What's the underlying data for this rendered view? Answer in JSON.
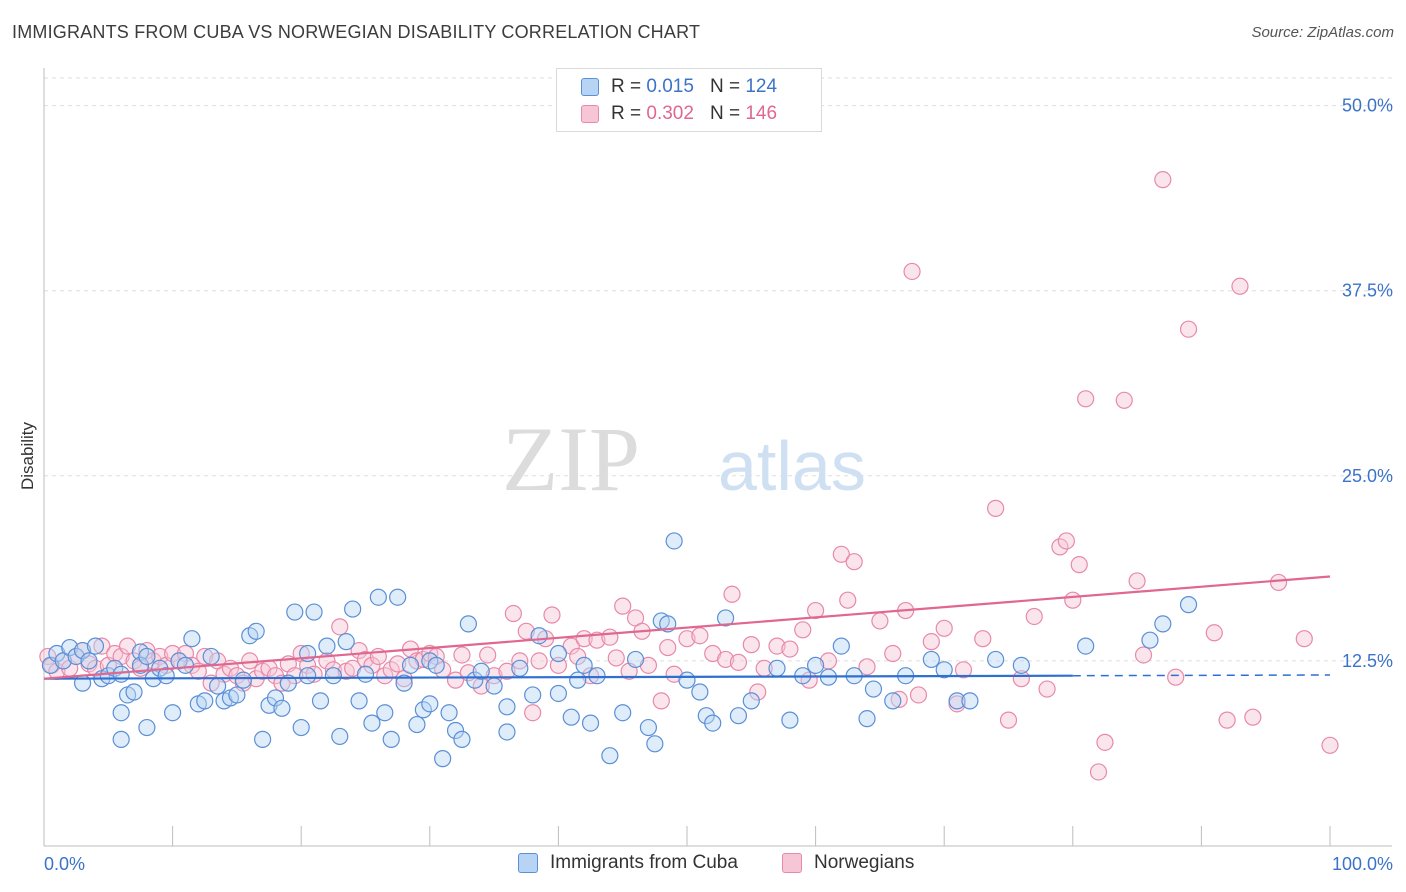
{
  "title": "IMMIGRANTS FROM CUBA VS NORWEGIAN DISABILITY CORRELATION CHART",
  "source": "Source: ZipAtlas.com",
  "watermark": {
    "zip": "ZIP",
    "atlas": "atlas"
  },
  "legend": {
    "r_label": "R =",
    "n_label": "N =",
    "blue": {
      "r": "0.015",
      "n": "124"
    },
    "pink": {
      "r": "0.302",
      "n": "146"
    }
  },
  "colors": {
    "blue_fill": "#b8d4f5",
    "blue_stroke": "#5b8fd6",
    "blue_line": "#2e6fd0",
    "pink_fill": "#f7c6d6",
    "pink_stroke": "#e889a8",
    "pink_line": "#e0678f",
    "tick_label": "#3b73c9"
  },
  "chart_data": {
    "type": "scatter",
    "title": "IMMIGRANTS FROM CUBA VS NORWEGIAN DISABILITY CORRELATION CHART",
    "xlabel": "",
    "ylabel": "Disability",
    "xlim": [
      0,
      100
    ],
    "ylim": [
      0,
      52
    ],
    "x_tick_labels": [
      "0.0%",
      "100.0%"
    ],
    "y_ticks": [
      12.5,
      25.0,
      37.5,
      50.0
    ],
    "y_tick_labels": [
      "12.5%",
      "25.0%",
      "37.5%",
      "50.0%"
    ],
    "grid": "horizontal dashed",
    "legend_position": "top-center and bottom",
    "series": [
      {
        "name": "Immigrants from Cuba",
        "r": 0.015,
        "n": 124,
        "trend": {
          "x0": 0,
          "y0": 11.3,
          "x1": 80,
          "y1": 11.5,
          "dashed_to": 100
        },
        "points": [
          [
            0.5,
            12.2
          ],
          [
            1,
            13
          ],
          [
            1.5,
            12.5
          ],
          [
            2,
            13.4
          ],
          [
            2.5,
            12.8
          ],
          [
            3,
            13.2
          ],
          [
            3.5,
            12.5
          ],
          [
            4,
            13.5
          ],
          [
            4.5,
            11.3
          ],
          [
            5,
            11.5
          ],
          [
            5.5,
            12
          ],
          [
            6,
            11.6
          ],
          [
            6,
            9
          ],
          [
            6,
            7.2
          ],
          [
            6.5,
            10.2
          ],
          [
            7,
            10.4
          ],
          [
            7.5,
            13.1
          ],
          [
            7.5,
            12.2
          ],
          [
            8,
            8
          ],
          [
            8.5,
            11.3
          ],
          [
            9,
            12
          ],
          [
            9.5,
            11.5
          ],
          [
            10,
            9
          ],
          [
            10.5,
            12.5
          ],
          [
            11,
            12.2
          ],
          [
            11.5,
            14
          ],
          [
            12,
            9.6
          ],
          [
            12.5,
            9.8
          ],
          [
            13,
            12.8
          ],
          [
            13.5,
            10.8
          ],
          [
            14,
            9.8
          ],
          [
            14.5,
            10
          ],
          [
            15,
            10.2
          ],
          [
            15.5,
            11.2
          ],
          [
            16,
            14.2
          ],
          [
            16.5,
            14.5
          ],
          [
            17,
            7.2
          ],
          [
            17.5,
            9.5
          ],
          [
            18,
            10
          ],
          [
            18.5,
            9.3
          ],
          [
            19,
            11
          ],
          [
            19.5,
            15.8
          ],
          [
            20,
            8
          ],
          [
            20.5,
            11.5
          ],
          [
            21,
            15.8
          ],
          [
            21.5,
            9.8
          ],
          [
            22,
            13.5
          ],
          [
            22.5,
            11.5
          ],
          [
            23,
            7.4
          ],
          [
            23.5,
            13.8
          ],
          [
            24,
            16
          ],
          [
            24.5,
            9.8
          ],
          [
            25,
            11.6
          ],
          [
            25.5,
            8.3
          ],
          [
            26,
            16.8
          ],
          [
            26.5,
            9
          ],
          [
            27,
            7.2
          ],
          [
            27.5,
            16.8
          ],
          [
            28,
            11
          ],
          [
            28.5,
            12.2
          ],
          [
            29,
            8.2
          ],
          [
            29.5,
            9.2
          ],
          [
            30,
            12.5
          ],
          [
            30.5,
            12.2
          ],
          [
            31,
            5.9
          ],
          [
            31.5,
            9
          ],
          [
            32,
            7.8
          ],
          [
            32.5,
            7.2
          ],
          [
            33,
            15
          ],
          [
            33.5,
            11.2
          ],
          [
            34,
            11.8
          ],
          [
            35,
            10.8
          ],
          [
            36,
            7.7
          ],
          [
            37,
            12
          ],
          [
            38,
            10.2
          ],
          [
            38.5,
            14.2
          ],
          [
            40,
            10.3
          ],
          [
            41,
            8.7
          ],
          [
            41.5,
            11.2
          ],
          [
            42,
            12.2
          ],
          [
            42.5,
            8.3
          ],
          [
            43,
            11.5
          ],
          [
            44,
            6.1
          ],
          [
            45,
            9
          ],
          [
            46,
            12.6
          ],
          [
            47,
            8
          ],
          [
            47.5,
            6.9
          ],
          [
            48,
            15.2
          ],
          [
            48.5,
            15
          ],
          [
            50,
            11.2
          ],
          [
            51,
            10.4
          ],
          [
            51.5,
            8.8
          ],
          [
            52,
            8.3
          ],
          [
            53,
            15.4
          ],
          [
            54,
            8.8
          ],
          [
            55,
            9.8
          ],
          [
            57,
            12
          ],
          [
            58,
            8.5
          ],
          [
            59,
            11.5
          ],
          [
            60,
            12.2
          ],
          [
            61,
            11.4
          ],
          [
            62,
            13.5
          ],
          [
            63,
            11.5
          ],
          [
            64,
            8.6
          ],
          [
            64.5,
            10.6
          ],
          [
            66,
            9.8
          ],
          [
            67,
            11.5
          ],
          [
            69,
            12.6
          ],
          [
            70,
            11.9
          ],
          [
            71,
            9.8
          ],
          [
            72,
            9.8
          ],
          [
            74,
            12.6
          ],
          [
            76,
            12.2
          ],
          [
            81,
            13.5
          ],
          [
            86,
            13.9
          ],
          [
            87,
            15
          ],
          [
            89,
            16.3
          ],
          [
            36,
            9.4
          ],
          [
            20.5,
            13
          ],
          [
            3,
            11
          ],
          [
            8,
            12.8
          ],
          [
            40,
            13
          ],
          [
            49,
            20.6
          ],
          [
            30,
            9.6
          ]
        ]
      },
      {
        "name": "Norwegians",
        "r": 0.302,
        "n": 146,
        "trend": {
          "x0": 0,
          "y0": 11.3,
          "x1": 100,
          "y1": 18.2
        },
        "points": [
          [
            0.3,
            12.8
          ],
          [
            0.6,
            12.2
          ],
          [
            1,
            11.8
          ],
          [
            1.5,
            12.5
          ],
          [
            2,
            12
          ],
          [
            2.5,
            12.8
          ],
          [
            3,
            13.2
          ],
          [
            3.5,
            12.3
          ],
          [
            4,
            12
          ],
          [
            4.5,
            13.5
          ],
          [
            5,
            12.2
          ],
          [
            5.5,
            13
          ],
          [
            6,
            12.8
          ],
          [
            6.5,
            13.5
          ],
          [
            7,
            12.5
          ],
          [
            7.5,
            12
          ],
          [
            8,
            13.2
          ],
          [
            8.5,
            12.5
          ],
          [
            9,
            12.8
          ],
          [
            9.5,
            12.2
          ],
          [
            10,
            13
          ],
          [
            10.5,
            12.5
          ],
          [
            11,
            13
          ],
          [
            11.5,
            12.2
          ],
          [
            12,
            11.8
          ],
          [
            12.5,
            12.8
          ],
          [
            13,
            11
          ],
          [
            13.5,
            12.5
          ],
          [
            14,
            11.6
          ],
          [
            14.5,
            12
          ],
          [
            15,
            11.5
          ],
          [
            15.5,
            11
          ],
          [
            16,
            12.5
          ],
          [
            16.5,
            11.3
          ],
          [
            17,
            11.8
          ],
          [
            17.5,
            12
          ],
          [
            18,
            11.5
          ],
          [
            18.5,
            11
          ],
          [
            19,
            12.3
          ],
          [
            19.5,
            11.5
          ],
          [
            20,
            13
          ],
          [
            20.5,
            12.2
          ],
          [
            21,
            11.6
          ],
          [
            22,
            12.5
          ],
          [
            22.5,
            11.9
          ],
          [
            23,
            14.8
          ],
          [
            23.5,
            11.8
          ],
          [
            24,
            12
          ],
          [
            24.5,
            13.2
          ],
          [
            25,
            12.6
          ],
          [
            25.5,
            12.2
          ],
          [
            26,
            12.8
          ],
          [
            26.5,
            11.5
          ],
          [
            27,
            11.9
          ],
          [
            27.5,
            12.3
          ],
          [
            28,
            11.3
          ],
          [
            28.5,
            13.3
          ],
          [
            29,
            12.5
          ],
          [
            29.5,
            12.6
          ],
          [
            30,
            13
          ],
          [
            30.5,
            12.8
          ],
          [
            31,
            11.9
          ],
          [
            32,
            11.2
          ],
          [
            32.5,
            12.9
          ],
          [
            33,
            11.7
          ],
          [
            34,
            10.8
          ],
          [
            34.5,
            12.9
          ],
          [
            35,
            11.5
          ],
          [
            36,
            11.8
          ],
          [
            36.5,
            15.7
          ],
          [
            37,
            12.5
          ],
          [
            37.5,
            14.5
          ],
          [
            38,
            9
          ],
          [
            38.5,
            12.5
          ],
          [
            39,
            14
          ],
          [
            39.5,
            15.6
          ],
          [
            40,
            12.2
          ],
          [
            41,
            13.5
          ],
          [
            41.5,
            12.8
          ],
          [
            42,
            14
          ],
          [
            42.5,
            11.5
          ],
          [
            43,
            13.9
          ],
          [
            44,
            14.1
          ],
          [
            44.5,
            12.7
          ],
          [
            45,
            16.2
          ],
          [
            45.5,
            11.8
          ],
          [
            46,
            15.4
          ],
          [
            46.5,
            14.5
          ],
          [
            47,
            12.2
          ],
          [
            48,
            9.8
          ],
          [
            48.5,
            13.4
          ],
          [
            49,
            11.6
          ],
          [
            50,
            14
          ],
          [
            51,
            14.2
          ],
          [
            52,
            13
          ],
          [
            53,
            12.6
          ],
          [
            53.5,
            17
          ],
          [
            54,
            12.4
          ],
          [
            55,
            13.6
          ],
          [
            55.5,
            10.4
          ],
          [
            56,
            12
          ],
          [
            57,
            13.5
          ],
          [
            58,
            13.3
          ],
          [
            59,
            14.6
          ],
          [
            59.5,
            11.2
          ],
          [
            60,
            15.9
          ],
          [
            61,
            12.5
          ],
          [
            62,
            19.7
          ],
          [
            62.5,
            16.6
          ],
          [
            63,
            19.2
          ],
          [
            64,
            12.1
          ],
          [
            65,
            15.2
          ],
          [
            66,
            13
          ],
          [
            66.5,
            9.9
          ],
          [
            67,
            15.9
          ],
          [
            67.5,
            38.8
          ],
          [
            68,
            10.2
          ],
          [
            69,
            13.8
          ],
          [
            70,
            14.7
          ],
          [
            71,
            9.6
          ],
          [
            71.5,
            11.9
          ],
          [
            73,
            14
          ],
          [
            74,
            22.8
          ],
          [
            75,
            8.5
          ],
          [
            76,
            11.3
          ],
          [
            77,
            15.5
          ],
          [
            78,
            10.6
          ],
          [
            79,
            20.2
          ],
          [
            79.5,
            20.6
          ],
          [
            80,
            16.6
          ],
          [
            80.5,
            19
          ],
          [
            81,
            30.2
          ],
          [
            82,
            5
          ],
          [
            82.5,
            7
          ],
          [
            84,
            30.1
          ],
          [
            85,
            17.9
          ],
          [
            85.5,
            12.9
          ],
          [
            87,
            45
          ],
          [
            88,
            11.4
          ],
          [
            89,
            34.9
          ],
          [
            91,
            14.4
          ],
          [
            92,
            8.5
          ],
          [
            93,
            37.8
          ],
          [
            94,
            8.7
          ],
          [
            96,
            17.8
          ],
          [
            98,
            14
          ],
          [
            100,
            6.8
          ]
        ]
      }
    ]
  },
  "bottom_legend": {
    "blue_label": "Immigrants from Cuba",
    "pink_label": "Norwegians"
  }
}
